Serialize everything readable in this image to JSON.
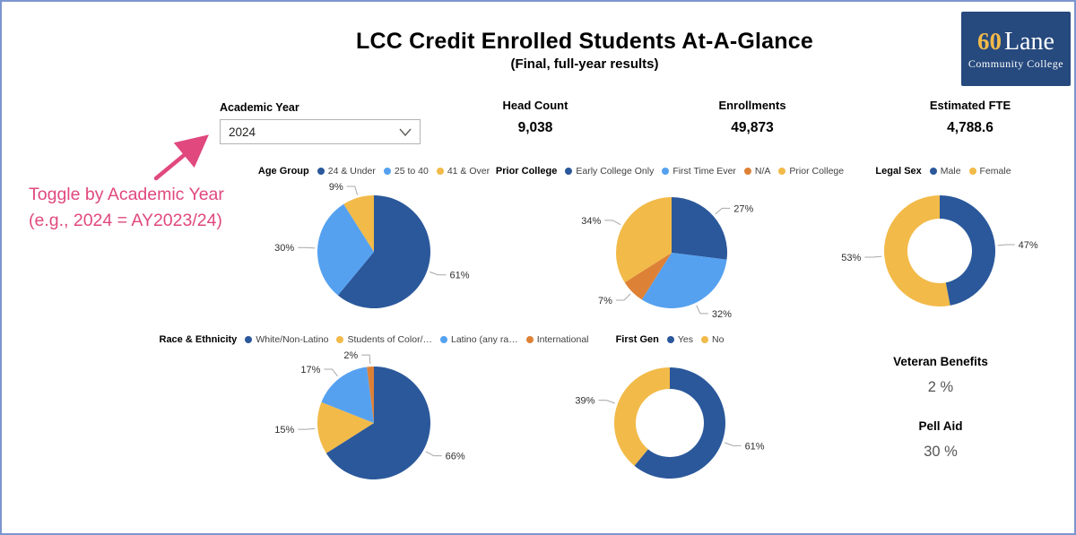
{
  "page": {
    "title": "LCC Credit Enrolled Students At-A-Glance",
    "subtitle": "(Final, full-year results)"
  },
  "logo": {
    "years": "60",
    "name": "Lane",
    "subname": "Community College"
  },
  "filter": {
    "label": "Academic Year",
    "value": "2024"
  },
  "annotation": {
    "line1": "Toggle by Academic Year",
    "line2": "(e.g., 2024 = AY2023/24)",
    "color": "#E0487E"
  },
  "kpis": [
    {
      "label": "Head Count",
      "value": "9,038"
    },
    {
      "label": "Enrollments",
      "value": "49,873"
    },
    {
      "label": "Estimated FTE",
      "value": "4,788.6"
    }
  ],
  "stats": [
    {
      "label": "Veteran Benefits",
      "value": "2 %"
    },
    {
      "label": "Pell Aid",
      "value": "30 %"
    }
  ],
  "colors": {
    "dark_blue": "#2B589B",
    "light_blue": "#55A1F0",
    "yellow": "#F2BA49",
    "orange": "#DD8137",
    "pink": "#E0487E",
    "logo_blue": "#26497E",
    "border_blue": "#7C95CF"
  },
  "chart_data": [
    {
      "id": "age-group",
      "type": "pie",
      "title": "Age Group",
      "categories": [
        "24 & Under",
        "25 to 40",
        "41 & Over"
      ],
      "values": [
        61,
        30,
        9
      ],
      "unit": "%",
      "colors": [
        "#2B589B",
        "#55A1F0",
        "#F2BA49"
      ],
      "legend_position": "top"
    },
    {
      "id": "prior-college",
      "type": "pie",
      "title": "Prior College",
      "categories": [
        "Early College Only",
        "First Time Ever",
        "N/A",
        "Prior College"
      ],
      "values": [
        27,
        32,
        7,
        34
      ],
      "unit": "%",
      "colors": [
        "#2B589B",
        "#55A1F0",
        "#DD8137",
        "#F2BA49"
      ],
      "legend_position": "top"
    },
    {
      "id": "legal-sex",
      "type": "donut",
      "title": "Legal Sex",
      "categories": [
        "Male",
        "Female"
      ],
      "values": [
        47,
        53
      ],
      "unit": "%",
      "colors": [
        "#2B589B",
        "#F2BA49"
      ],
      "legend_position": "top"
    },
    {
      "id": "race-ethnicity",
      "type": "pie",
      "title": "Race & Ethnicity",
      "categories": [
        "White/Non-Latino",
        "Students of Color/…",
        "Latino (any ra…",
        "International"
      ],
      "values": [
        66,
        15,
        17,
        2
      ],
      "unit": "%",
      "colors": [
        "#2B589B",
        "#F2BA49",
        "#55A1F0",
        "#DD8137"
      ],
      "legend_position": "top"
    },
    {
      "id": "first-gen",
      "type": "donut",
      "title": "First Gen",
      "categories": [
        "Yes",
        "No"
      ],
      "values": [
        61,
        39
      ],
      "unit": "%",
      "colors": [
        "#2B589B",
        "#F2BA49"
      ],
      "legend_position": "top"
    }
  ]
}
